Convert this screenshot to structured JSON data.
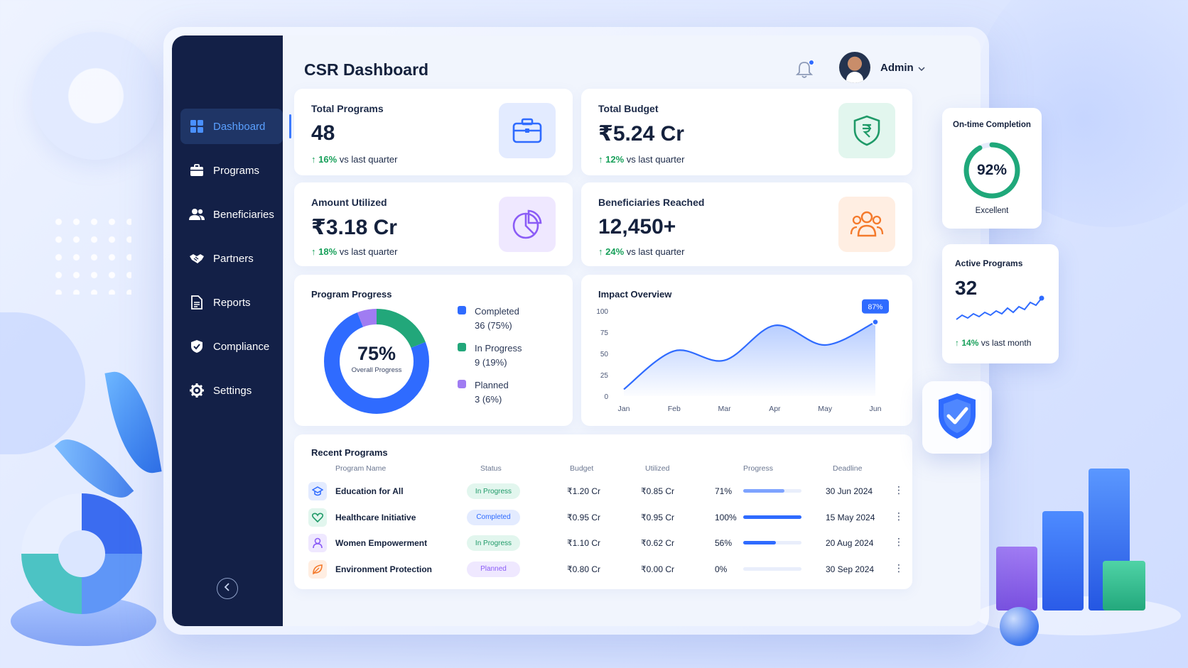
{
  "page": {
    "title": "CSR Dashboard"
  },
  "header": {
    "user_name": "Admin"
  },
  "sidebar": {
    "items": [
      {
        "label": "Dashboard",
        "icon": "grid-icon",
        "active": true
      },
      {
        "label": "Programs",
        "icon": "briefcase-icon"
      },
      {
        "label": "Beneficiaries",
        "icon": "users-icon"
      },
      {
        "label": "Partners",
        "icon": "handshake-icon"
      },
      {
        "label": "Reports",
        "icon": "document-icon"
      },
      {
        "label": "Compliance",
        "icon": "shield-check-icon"
      },
      {
        "label": "Settings",
        "icon": "gear-icon"
      }
    ]
  },
  "stats": [
    {
      "label": "Total Programs",
      "value": "48",
      "delta": "16%",
      "delta_suffix": "vs last quarter",
      "icon": "briefcase-icon"
    },
    {
      "label": "Total Budget",
      "value": "₹5.24 Cr",
      "delta": "12%",
      "delta_suffix": "vs last quarter",
      "icon": "rupee-shield-icon"
    },
    {
      "label": "Amount Utilized",
      "value": "₹3.18 Cr",
      "delta": "18%",
      "delta_suffix": "vs last quarter",
      "icon": "pie-chart-icon"
    },
    {
      "label": "Beneficiaries Reached",
      "value": "12,450+",
      "delta": "24%",
      "delta_suffix": "vs last quarter",
      "icon": "users-icon"
    }
  ],
  "program_progress": {
    "title": "Program Progress",
    "center_value": "75%",
    "center_label": "Overall Progress",
    "legend": [
      {
        "label": "Completed",
        "value": "36 (75%)",
        "color": "#2f6bff"
      },
      {
        "label": "In Progress",
        "value": "9 (19%)",
        "color": "#22a77a"
      },
      {
        "label": "Planned",
        "value": "3 (6%)",
        "color": "#a07cf2"
      }
    ]
  },
  "chart_data": {
    "type": "area",
    "title": "Impact Overview",
    "categories": [
      "Jan",
      "Feb",
      "Mar",
      "Apr",
      "May",
      "Jun"
    ],
    "series": [
      {
        "values": [
          8,
          53,
          42,
          83,
          60,
          87
        ]
      }
    ],
    "ylim": [
      0,
      100
    ],
    "yticks": [
      "100",
      "75",
      "50",
      "25",
      "0"
    ],
    "callout": "87%",
    "grid": false
  },
  "recent_programs": {
    "title": "Recent Programs",
    "columns": [
      "Program Name",
      "Status",
      "Budget",
      "Utilized",
      "Progress",
      "Deadline"
    ],
    "rows": [
      {
        "name": "Education for All",
        "status": "In Progress",
        "budget": "₹1.20 Cr",
        "utilized": "₹0.85 Cr",
        "progress": "71%",
        "progress_value": 0.71,
        "deadline": "30 Jun 2024",
        "icon": "graduation-cap-icon"
      },
      {
        "name": "Healthcare Initiative",
        "status": "Completed",
        "budget": "₹0.95 Cr",
        "utilized": "₹0.95 Cr",
        "progress": "100%",
        "progress_value": 1.0,
        "deadline": "15 May 2024",
        "icon": "heart-icon"
      },
      {
        "name": "Women Empowerment",
        "status": "In Progress",
        "budget": "₹1.10 Cr",
        "utilized": "₹0.62 Cr",
        "progress": "56%",
        "progress_value": 0.56,
        "deadline": "20 Aug 2024",
        "icon": "woman-icon"
      },
      {
        "name": "Environment Protection",
        "status": "Planned",
        "budget": "₹0.80 Cr",
        "utilized": "₹0.00 Cr",
        "progress": "0%",
        "progress_value": 0.0,
        "deadline": "30 Sep 2024",
        "icon": "leaf-icon"
      }
    ]
  },
  "ontime": {
    "title": "On-time Completion",
    "value": "92%",
    "value_fraction": 0.92,
    "caption": "Excellent"
  },
  "active_programs": {
    "title": "Active Programs",
    "value": "32",
    "delta": "14%",
    "delta_suffix": "vs last month"
  }
}
